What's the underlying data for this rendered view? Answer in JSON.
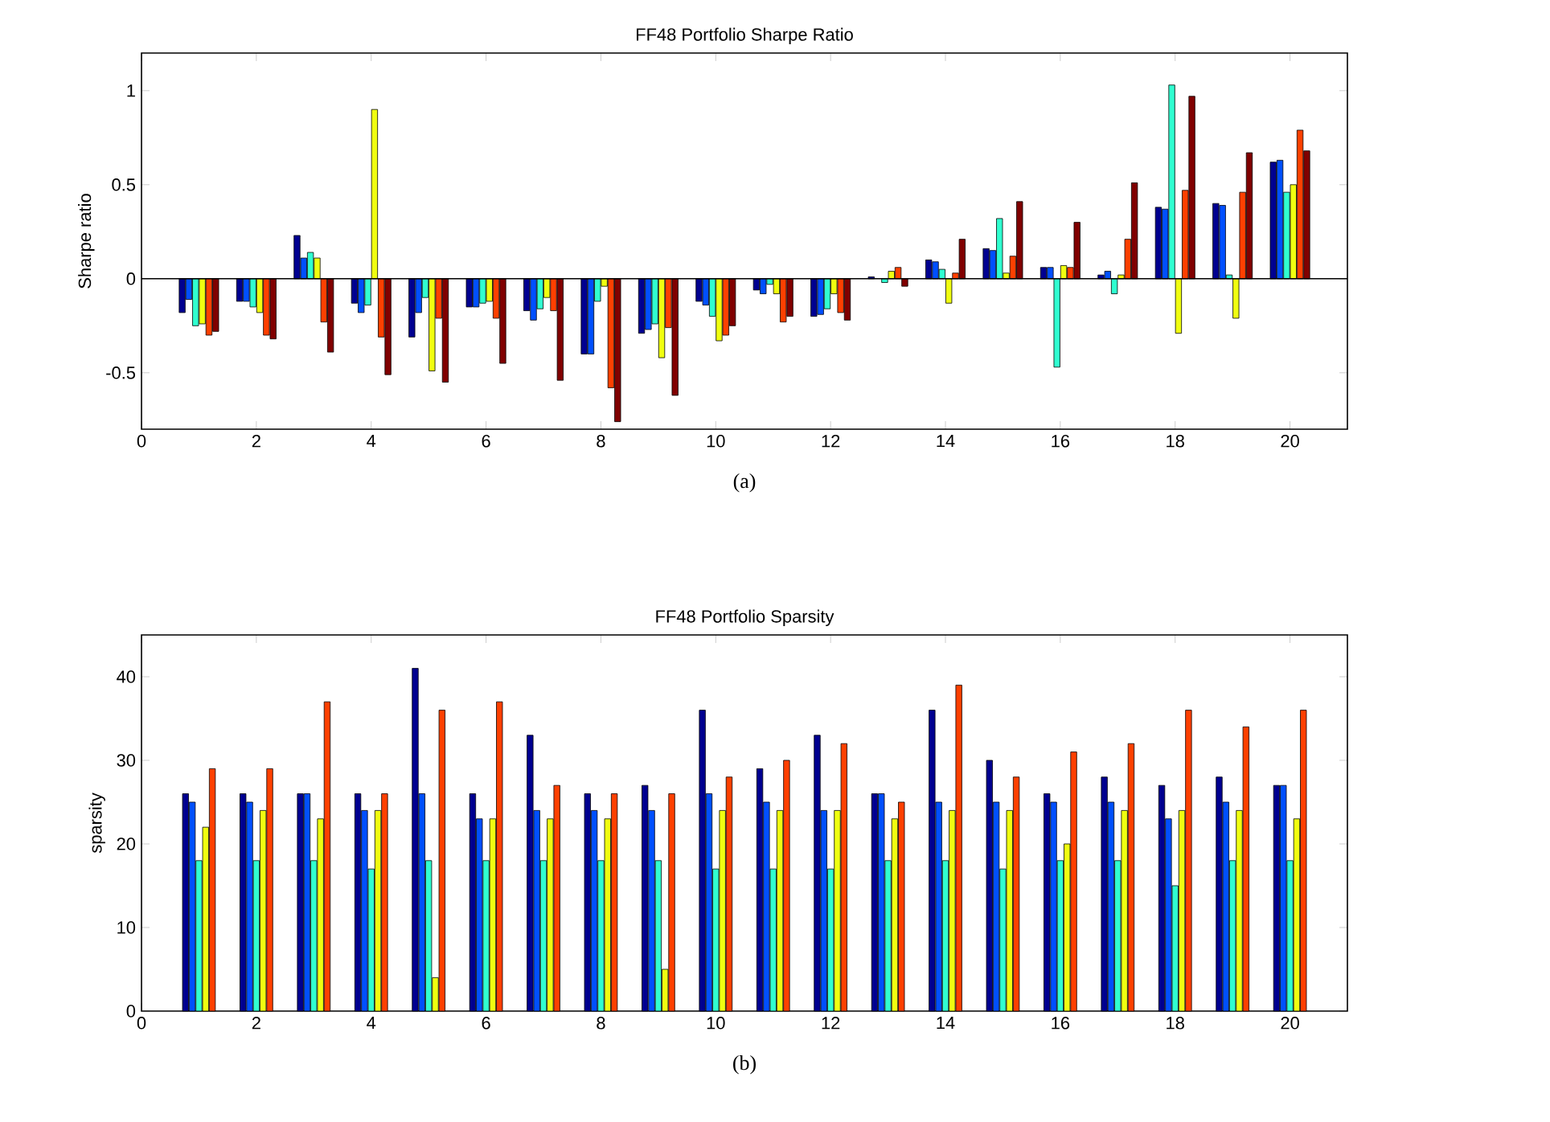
{
  "chart_data": [
    {
      "type": "bar",
      "title": "FF48 Portfolio Sharpe Ratio",
      "ylabel": "Sharpe ratio",
      "annotations": [
        "(a)"
      ],
      "x": [
        1,
        2,
        3,
        4,
        5,
        6,
        7,
        8,
        9,
        10,
        11,
        12,
        13,
        14,
        15,
        16,
        17,
        18,
        19,
        20
      ],
      "series": [
        {
          "color": "#000090",
          "values": [
            -0.18,
            -0.12,
            0.23,
            -0.13,
            -0.31,
            -0.15,
            -0.17,
            -0.4,
            -0.29,
            -0.12,
            -0.06,
            -0.2,
            0.01,
            0.1,
            0.16,
            0.06,
            0.02,
            0.38,
            0.4,
            0.62
          ]
        },
        {
          "color": "#0050ff",
          "values": [
            -0.11,
            -0.12,
            0.11,
            -0.18,
            -0.18,
            -0.15,
            -0.22,
            -0.4,
            -0.27,
            -0.14,
            -0.08,
            -0.19,
            null,
            0.09,
            0.15,
            0.06,
            0.04,
            0.37,
            0.39,
            0.63
          ]
        },
        {
          "color": "#30ffd0",
          "values": [
            -0.25,
            -0.15,
            0.14,
            -0.14,
            -0.1,
            -0.13,
            -0.16,
            -0.12,
            -0.24,
            -0.2,
            -0.03,
            -0.16,
            -0.02,
            0.05,
            0.32,
            -0.47,
            -0.08,
            1.03,
            0.02,
            0.46
          ]
        },
        {
          "color": "#f0ff10",
          "values": [
            -0.24,
            -0.18,
            0.11,
            0.9,
            -0.49,
            -0.12,
            -0.1,
            -0.04,
            -0.42,
            -0.33,
            -0.08,
            -0.08,
            0.04,
            -0.13,
            0.03,
            0.07,
            0.02,
            -0.29,
            -0.21,
            0.5
          ]
        },
        {
          "color": "#ff4000",
          "values": [
            -0.3,
            -0.3,
            -0.23,
            -0.31,
            -0.21,
            -0.21,
            -0.17,
            -0.58,
            -0.26,
            -0.3,
            -0.23,
            -0.18,
            0.06,
            0.03,
            0.12,
            0.06,
            0.21,
            0.47,
            0.46,
            0.79
          ]
        },
        {
          "color": "#800000",
          "values": [
            -0.28,
            -0.32,
            -0.39,
            -0.51,
            -0.55,
            -0.45,
            -0.54,
            -0.76,
            -0.62,
            -0.25,
            -0.2,
            -0.22,
            -0.04,
            0.21,
            0.41,
            0.3,
            0.51,
            0.97,
            0.67,
            0.68
          ]
        }
      ],
      "xlim": [
        0,
        21
      ],
      "xticks": [
        0,
        2,
        4,
        6,
        8,
        10,
        12,
        14,
        16,
        18,
        20
      ],
      "ylim": [
        -0.8,
        1.2
      ],
      "yticks": [
        -0.5,
        0,
        0.5,
        1
      ]
    },
    {
      "type": "bar",
      "title": "FF48 Portfolio Sparsity",
      "ylabel": "sparsity",
      "annotations": [
        "(b)"
      ],
      "x": [
        1,
        2,
        3,
        4,
        5,
        6,
        7,
        8,
        9,
        10,
        11,
        12,
        13,
        14,
        15,
        16,
        17,
        18,
        19,
        20
      ],
      "series": [
        {
          "color": "#000090",
          "values": [
            26,
            26,
            26,
            26,
            41,
            26,
            33,
            26,
            27,
            36,
            29,
            33,
            26,
            36,
            30,
            26,
            28,
            27,
            28,
            27
          ]
        },
        {
          "color": "#0050ff",
          "values": [
            25,
            25,
            26,
            24,
            26,
            23,
            24,
            24,
            24,
            26,
            25,
            24,
            26,
            25,
            25,
            25,
            25,
            23,
            25,
            27
          ]
        },
        {
          "color": "#30ffd0",
          "values": [
            18,
            18,
            18,
            17,
            18,
            18,
            18,
            18,
            18,
            17,
            17,
            17,
            18,
            18,
            17,
            18,
            18,
            15,
            18,
            18
          ]
        },
        {
          "color": "#f0ff10",
          "values": [
            22,
            24,
            23,
            24,
            4,
            23,
            23,
            23,
            5,
            24,
            24,
            24,
            23,
            24,
            24,
            20,
            24,
            24,
            24,
            23
          ]
        },
        {
          "color": "#ff4000",
          "values": [
            29,
            29,
            37,
            26,
            36,
            37,
            27,
            26,
            26,
            28,
            30,
            32,
            25,
            39,
            28,
            31,
            32,
            36,
            34,
            36
          ]
        }
      ],
      "xlim": [
        0,
        21
      ],
      "xticks": [
        0,
        2,
        4,
        6,
        8,
        10,
        12,
        14,
        16,
        18,
        20
      ],
      "ylim": [
        0,
        45
      ],
      "yticks": [
        0,
        10,
        20,
        30,
        40
      ]
    }
  ]
}
